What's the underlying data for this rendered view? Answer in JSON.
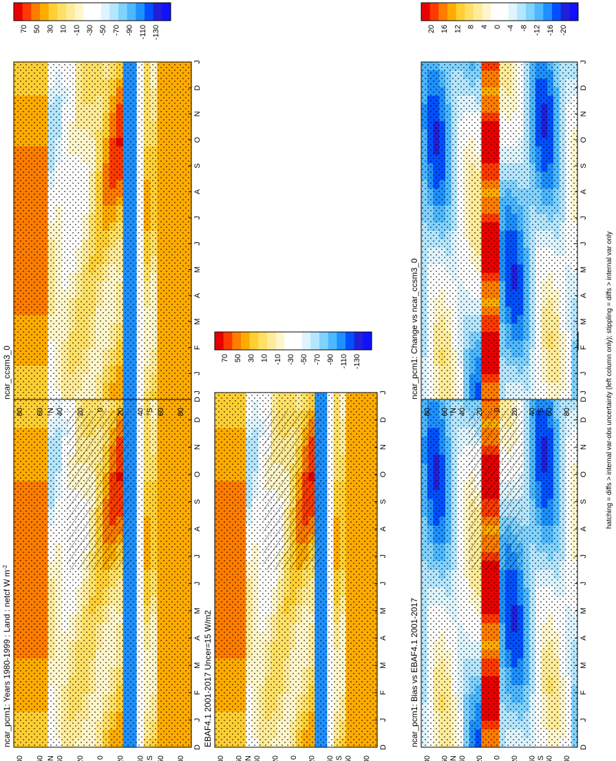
{
  "figure": {
    "footer": "hatching = diffs > internal var-obs uncertainty (left column only); stippling = diffs > internal var only"
  },
  "month_ticks": [
    "D",
    "J",
    "F",
    "M",
    "A",
    "M",
    "J",
    "J",
    "A",
    "S",
    "O",
    "N",
    "D",
    "J"
  ],
  "lat_ticks": [
    "80",
    "60",
    "40",
    "20",
    "0",
    "20",
    "40",
    "60",
    "80"
  ],
  "hemisphere_labels": {
    "north": "°N",
    "south": "°S"
  },
  "chart_data": [
    {
      "type": "heatmap",
      "id": "model-clim",
      "title": "ncar_pcm1: Years 1980-1999 : Land : netcf W m",
      "title_superscript": "-2",
      "x_axis": "month (Dec to Jan, 14 ticks)",
      "y_axis": "latitude (90N to 90S)",
      "colorbar": [
        "70",
        "50",
        "30",
        "10",
        "-10",
        "-30",
        "-50",
        "-70",
        "-90",
        "-110",
        "-130"
      ],
      "colors": [
        "#e80000",
        "#ff3a00",
        "#ff7d00",
        "#ffab00",
        "#ffcf33",
        "#ffe066",
        "#ffeb99",
        "#fff6cc",
        "#ffffff",
        "#ffffff",
        "#def4ff",
        "#b4e6ff",
        "#80d2ff",
        "#4db8ff",
        "#1e90ff",
        "#0050ff",
        "#2020d8",
        "#1010ff"
      ],
      "hatching": true
    },
    {
      "type": "heatmap",
      "id": "obs",
      "title": "EBAF4.1 2001-2017 Uncer=15 W/m2",
      "x_axis": "month (Dec to Jan, 14 ticks)",
      "y_axis": "latitude (90N to 90S)",
      "colorbar": [
        "70",
        "50",
        "30",
        "10",
        "-10",
        "-30",
        "-50",
        "-70",
        "-90",
        "-110",
        "-130"
      ],
      "colors": [
        "#e80000",
        "#ff3a00",
        "#ff7d00",
        "#ffab00",
        "#ffcf33",
        "#ffe066",
        "#ffeb99",
        "#fff6cc",
        "#ffffff",
        "#ffffff",
        "#def4ff",
        "#b4e6ff",
        "#80d2ff",
        "#4db8ff",
        "#1e90ff",
        "#0050ff",
        "#2020d8",
        "#1010ff"
      ],
      "hatching": true
    },
    {
      "type": "heatmap",
      "id": "bias",
      "title": "ncar_pcm1: Bias vs EBAF4.1 2001-2017",
      "x_axis": "month (Dec to Jan, 14 ticks)",
      "y_axis": "latitude (90N to 90S)",
      "colorbar": [
        "20",
        "16",
        "12",
        "8",
        "4",
        "0",
        "-4",
        "-8",
        "-12",
        "-16",
        "-20"
      ],
      "colors": [
        "#e80000",
        "#ff3a00",
        "#ff7d00",
        "#ffab00",
        "#ffcf33",
        "#ffe066",
        "#ffeb99",
        "#fff6cc",
        "#ffffff",
        "#ffffff",
        "#def4ff",
        "#b4e6ff",
        "#80d2ff",
        "#4db8ff",
        "#1e90ff",
        "#0050ff",
        "#2020d8",
        "#1010ff"
      ],
      "hatching": true
    },
    {
      "type": "heatmap",
      "id": "ref-clim",
      "title": "ncar_ccsm3_0",
      "x_axis": "month (Dec to Jan, 14 ticks)",
      "y_axis": "latitude (90N to 90S)",
      "colorbar": [
        "70",
        "50",
        "30",
        "10",
        "-10",
        "-30",
        "-50",
        "-70",
        "-90",
        "-110",
        "-130"
      ],
      "colors": [
        "#e80000",
        "#ff3a00",
        "#ff7d00",
        "#ffab00",
        "#ffcf33",
        "#ffe066",
        "#ffeb99",
        "#fff6cc",
        "#ffffff",
        "#ffffff",
        "#def4ff",
        "#b4e6ff",
        "#80d2ff",
        "#4db8ff",
        "#1e90ff",
        "#0050ff",
        "#2020d8",
        "#1010ff"
      ],
      "hatching": false
    },
    {
      "type": "heatmap",
      "id": "change",
      "title": "ncar_pcm1: Change vs ncar_ccsm3_0",
      "x_axis": "month (Dec to Jan, 14 ticks)",
      "y_axis": "latitude (90N to 90S)",
      "colorbar": [
        "20",
        "16",
        "12",
        "8",
        "4",
        "0",
        "-4",
        "-8",
        "-12",
        "-16",
        "-20"
      ],
      "colors": [
        "#e80000",
        "#ff3a00",
        "#ff7d00",
        "#ffab00",
        "#ffcf33",
        "#ffe066",
        "#ffeb99",
        "#fff6cc",
        "#ffffff",
        "#ffffff",
        "#def4ff",
        "#b4e6ff",
        "#80d2ff",
        "#4db8ff",
        "#1e90ff",
        "#0050ff",
        "#2020d8",
        "#1010ff"
      ],
      "hatching": false
    }
  ]
}
